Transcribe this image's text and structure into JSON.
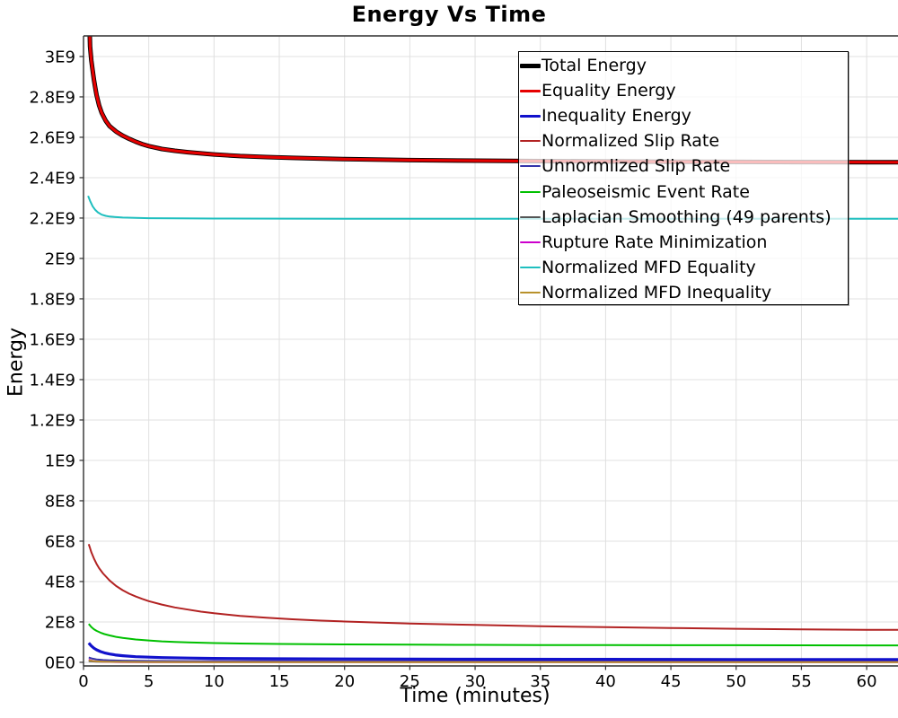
{
  "title": "Energy Vs Time",
  "chart_data": {
    "type": "line",
    "title": "Energy Vs Time",
    "xlabel": "Time (minutes)",
    "ylabel": "Energy",
    "x_unit": "minutes",
    "y_unit": "E9 (values stored in units of 1e9)",
    "xlim": [
      0,
      62.4
    ],
    "ylim_e9": [
      -0.018,
      3.102
    ],
    "grid": true,
    "legend_position": "top-right",
    "x_ticks": [
      0,
      5,
      10,
      15,
      20,
      25,
      30,
      35,
      40,
      45,
      50,
      55,
      60
    ],
    "y_ticks": [
      {
        "v": 0,
        "label": "0E0"
      },
      {
        "v": 0.2,
        "label": "2E8"
      },
      {
        "v": 0.4,
        "label": "4E8"
      },
      {
        "v": 0.6,
        "label": "6E8"
      },
      {
        "v": 0.8,
        "label": "8E8"
      },
      {
        "v": 1,
        "label": "1E9"
      },
      {
        "v": 1.2,
        "label": "1.2E9"
      },
      {
        "v": 1.4,
        "label": "1.4E9"
      },
      {
        "v": 1.6,
        "label": "1.6E9"
      },
      {
        "v": 1.8,
        "label": "1.8E9"
      },
      {
        "v": 2,
        "label": "2E9"
      },
      {
        "v": 2.2,
        "label": "2.2E9"
      },
      {
        "v": 2.4,
        "label": "2.4E9"
      },
      {
        "v": 2.6,
        "label": "2.6E9"
      },
      {
        "v": 2.8,
        "label": "2.8E9"
      },
      {
        "v": 3,
        "label": "3E9"
      }
    ],
    "draw_order": [
      6,
      4,
      7,
      9,
      2,
      5,
      3,
      8,
      0,
      1
    ],
    "series": [
      {
        "name": "Total Energy",
        "color": "#000000",
        "width": 5,
        "points": [
          [
            0.38,
            3.35
          ],
          [
            0.5,
            3.05
          ],
          [
            0.6,
            2.98
          ],
          [
            0.7,
            2.93
          ],
          [
            0.8,
            2.885
          ],
          [
            0.9,
            2.845
          ],
          [
            1.0,
            2.81
          ],
          [
            1.2,
            2.757
          ],
          [
            1.4,
            2.72
          ],
          [
            1.7,
            2.682
          ],
          [
            2.0,
            2.655
          ],
          [
            2.5,
            2.628
          ],
          [
            3.0,
            2.608
          ],
          [
            3.5,
            2.592
          ],
          [
            4.0,
            2.578
          ],
          [
            4.5,
            2.566
          ],
          [
            5.0,
            2.556
          ],
          [
            6,
            2.542
          ],
          [
            7,
            2.533
          ],
          [
            8,
            2.526
          ],
          [
            9,
            2.52
          ],
          [
            10,
            2.515
          ],
          [
            12,
            2.507
          ],
          [
            14,
            2.502
          ],
          [
            16,
            2.498
          ],
          [
            18,
            2.495
          ],
          [
            20,
            2.492
          ],
          [
            25,
            2.487
          ],
          [
            30,
            2.484
          ],
          [
            35,
            2.482
          ],
          [
            40,
            2.48
          ],
          [
            45,
            2.479
          ],
          [
            50,
            2.478
          ],
          [
            55,
            2.477
          ],
          [
            60,
            2.4765
          ],
          [
            62.4,
            2.4763
          ]
        ]
      },
      {
        "name": "Equality Energy",
        "color": "#e60000",
        "width": 3.2,
        "points": [
          [
            0.38,
            3.35
          ],
          [
            0.5,
            3.05
          ],
          [
            0.6,
            2.98
          ],
          [
            0.7,
            2.93
          ],
          [
            0.8,
            2.885
          ],
          [
            0.9,
            2.845
          ],
          [
            1.0,
            2.81
          ],
          [
            1.2,
            2.757
          ],
          [
            1.4,
            2.72
          ],
          [
            1.7,
            2.682
          ],
          [
            2.0,
            2.655
          ],
          [
            2.5,
            2.628
          ],
          [
            3.0,
            2.608
          ],
          [
            3.5,
            2.592
          ],
          [
            4.0,
            2.578
          ],
          [
            4.5,
            2.566
          ],
          [
            5.0,
            2.556
          ],
          [
            6,
            2.542
          ],
          [
            7,
            2.533
          ],
          [
            8,
            2.526
          ],
          [
            9,
            2.52
          ],
          [
            10,
            2.515
          ],
          [
            12,
            2.507
          ],
          [
            14,
            2.502
          ],
          [
            16,
            2.498
          ],
          [
            18,
            2.495
          ],
          [
            20,
            2.492
          ],
          [
            25,
            2.487
          ],
          [
            30,
            2.484
          ],
          [
            35,
            2.482
          ],
          [
            40,
            2.48
          ],
          [
            45,
            2.479
          ],
          [
            50,
            2.478
          ],
          [
            55,
            2.477
          ],
          [
            60,
            2.4765
          ],
          [
            62.4,
            2.4763
          ]
        ]
      },
      {
        "name": "Inequality Energy",
        "color": "#1111cc",
        "width": 3.2,
        "points": [
          [
            0.4,
            0.096
          ],
          [
            0.6,
            0.081
          ],
          [
            0.8,
            0.07
          ],
          [
            1.0,
            0.062
          ],
          [
            1.3,
            0.053
          ],
          [
            1.6,
            0.047
          ],
          [
            2.0,
            0.041
          ],
          [
            2.5,
            0.036
          ],
          [
            3.0,
            0.0325
          ],
          [
            4.0,
            0.028
          ],
          [
            5.0,
            0.0255
          ],
          [
            6,
            0.0235
          ],
          [
            8,
            0.021
          ],
          [
            10,
            0.0195
          ],
          [
            15,
            0.0175
          ],
          [
            20,
            0.0165
          ],
          [
            30,
            0.0153
          ],
          [
            40,
            0.0147
          ],
          [
            50,
            0.0142
          ],
          [
            60,
            0.014
          ],
          [
            62.4,
            0.014
          ]
        ]
      },
      {
        "name": "Normalized Slip Rate",
        "color": "#b22222",
        "width": 2,
        "points": [
          [
            0.4,
            0.585
          ],
          [
            0.5,
            0.565
          ],
          [
            0.6,
            0.545
          ],
          [
            0.8,
            0.514
          ],
          [
            1.0,
            0.488
          ],
          [
            1.2,
            0.466
          ],
          [
            1.5,
            0.44
          ],
          [
            2.0,
            0.405
          ],
          [
            2.5,
            0.378
          ],
          [
            3.0,
            0.357
          ],
          [
            3.5,
            0.34
          ],
          [
            4.0,
            0.326
          ],
          [
            4.5,
            0.314
          ],
          [
            5.0,
            0.303
          ],
          [
            6,
            0.286
          ],
          [
            7,
            0.272
          ],
          [
            8,
            0.261
          ],
          [
            9,
            0.251
          ],
          [
            10,
            0.243
          ],
          [
            12,
            0.23
          ],
          [
            14,
            0.221
          ],
          [
            16,
            0.213
          ],
          [
            18,
            0.207
          ],
          [
            20,
            0.202
          ],
          [
            25,
            0.192
          ],
          [
            30,
            0.185
          ],
          [
            35,
            0.179
          ],
          [
            40,
            0.174
          ],
          [
            45,
            0.17
          ],
          [
            50,
            0.166
          ],
          [
            55,
            0.163
          ],
          [
            60,
            0.161
          ],
          [
            62.4,
            0.1605
          ]
        ]
      },
      {
        "name": "Unnormlized Slip Rate",
        "color": "#3333aa",
        "width": 2,
        "points": [
          [
            0.4,
            0.024
          ],
          [
            0.7,
            0.018
          ],
          [
            1.0,
            0.0145
          ],
          [
            1.5,
            0.0115
          ],
          [
            2,
            0.0098
          ],
          [
            3,
            0.0082
          ],
          [
            5,
            0.0069
          ],
          [
            8,
            0.0062
          ],
          [
            12,
            0.0058
          ],
          [
            20,
            0.0055
          ],
          [
            40,
            0.0053
          ],
          [
            60,
            0.0052
          ],
          [
            62.4,
            0.0052
          ]
        ]
      },
      {
        "name": "Paleoseismic Event Rate",
        "color": "#00c000",
        "width": 2,
        "points": [
          [
            0.4,
            0.19
          ],
          [
            0.6,
            0.175
          ],
          [
            0.8,
            0.164
          ],
          [
            1.0,
            0.156
          ],
          [
            1.3,
            0.147
          ],
          [
            1.6,
            0.14
          ],
          [
            2.0,
            0.133
          ],
          [
            2.5,
            0.126
          ],
          [
            3.0,
            0.121
          ],
          [
            4.0,
            0.113
          ],
          [
            5.0,
            0.108
          ],
          [
            6,
            0.104
          ],
          [
            7,
            0.101
          ],
          [
            8,
            0.099
          ],
          [
            10,
            0.0955
          ],
          [
            12,
            0.093
          ],
          [
            15,
            0.0908
          ],
          [
            20,
            0.0885
          ],
          [
            25,
            0.0872
          ],
          [
            30,
            0.0863
          ],
          [
            35,
            0.0857
          ],
          [
            40,
            0.0852
          ],
          [
            45,
            0.0848
          ],
          [
            50,
            0.0845
          ],
          [
            55,
            0.0842
          ],
          [
            60,
            0.084
          ],
          [
            62.4,
            0.084
          ]
        ]
      },
      {
        "name": "Laplacian Smoothing (49 parents)",
        "color": "#555555",
        "width": 2,
        "points": [
          [
            0.4,
            0.006
          ],
          [
            0.7,
            0.0042
          ],
          [
            1,
            0.0033
          ],
          [
            2,
            0.0024
          ],
          [
            3,
            0.002
          ],
          [
            5,
            0.0017
          ],
          [
            10,
            0.0015
          ],
          [
            60,
            0.0014
          ],
          [
            62.4,
            0.0014
          ]
        ]
      },
      {
        "name": "Rupture Rate Minimization",
        "color": "#cc00cc",
        "width": 2,
        "points": [
          [
            0.4,
            0.013
          ],
          [
            0.6,
            0.0085
          ],
          [
            0.8,
            0.006
          ],
          [
            1,
            0.0045
          ],
          [
            1.5,
            0.0028
          ],
          [
            2,
            0.002
          ],
          [
            3,
            0.0013
          ],
          [
            5,
            0.0009
          ],
          [
            10,
            0.0006
          ],
          [
            60,
            0.0005
          ],
          [
            62.4,
            0.0005
          ]
        ]
      },
      {
        "name": "Normalized MFD Equality",
        "color": "#1fbfbf",
        "width": 2,
        "points": [
          [
            0.35,
            2.31
          ],
          [
            0.5,
            2.285
          ],
          [
            0.7,
            2.258
          ],
          [
            0.9,
            2.24
          ],
          [
            1.1,
            2.228
          ],
          [
            1.4,
            2.2165
          ],
          [
            1.7,
            2.211
          ],
          [
            2.0,
            2.2075
          ],
          [
            2.5,
            2.2045
          ],
          [
            3,
            2.2025
          ],
          [
            4,
            2.2005
          ],
          [
            5,
            2.1995
          ],
          [
            7,
            2.1985
          ],
          [
            10,
            2.1975
          ],
          [
            15,
            2.197
          ],
          [
            20,
            2.1965
          ],
          [
            30,
            2.196
          ],
          [
            40,
            2.196
          ],
          [
            50,
            2.196
          ],
          [
            60,
            2.196
          ],
          [
            62.4,
            2.196
          ]
        ]
      },
      {
        "name": "Normalized MFD Inequality",
        "color": "#b8912b",
        "width": 2,
        "points": [
          [
            0.4,
            0.01
          ],
          [
            0.7,
            0.0065
          ],
          [
            1,
            0.0047
          ],
          [
            1.5,
            0.0033
          ],
          [
            2,
            0.0026
          ],
          [
            3,
            0.002
          ],
          [
            5,
            0.0016
          ],
          [
            10,
            0.0013
          ],
          [
            20,
            0.0012
          ],
          [
            60,
            0.001
          ],
          [
            62.4,
            0.001
          ]
        ]
      }
    ]
  },
  "legend": {
    "entries": [
      "Total Energy",
      "Equality Energy",
      "Inequality Energy",
      "Normalized Slip Rate",
      "Unnormlized Slip Rate",
      "Paleoseismic Event Rate",
      "Laplacian Smoothing (49 parents)",
      "Rupture Rate Minimization",
      "Normalized MFD Equality",
      "Normalized MFD Inequality"
    ]
  },
  "colors": {
    "background": "#ffffff",
    "gridline": "#e0e0e0",
    "axis_frame": "#2f2f2f",
    "text": "#000000"
  }
}
